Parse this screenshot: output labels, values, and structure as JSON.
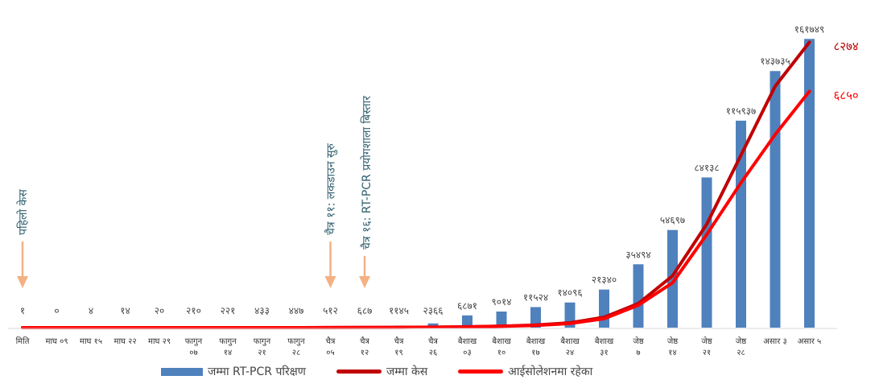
{
  "chart_data": {
    "type": "bar+line",
    "categories": [
      "मिति",
      "माघ ०९",
      "माघ १५",
      "माघ २२",
      "माघ २९",
      "फागुन ०७",
      "फागुन १४",
      "फागुन २१",
      "फागुन २८",
      "चैत्र ०५",
      "चैत्र १२",
      "चैत्र १९",
      "चैत्र २६",
      "बैशाख ०३",
      "बैशाख १०",
      "बैशाख १७",
      "बैशाख २४",
      "बैशाख ३१",
      "जेष्ठ ७",
      "जेष्ठ १४",
      "जेष्ठ २१",
      "जेष्ठ २८",
      "असार ३",
      "असार ५"
    ],
    "series": [
      {
        "name": "जम्मा RT-PCR परिक्षण",
        "type": "bar",
        "color": "#4f81bd",
        "values": [
          1,
          0,
          4,
          14,
          20,
          210,
          221,
          433,
          447,
          512,
          687,
          1145,
          2366,
          6871,
          9014,
          11524,
          14096,
          21340,
          35494,
          54697,
          84138,
          115937,
          143735,
          161749
        ],
        "labels": [
          "१",
          "०",
          "४",
          "१४",
          "२०",
          "२१०",
          "२२१",
          "४३३",
          "४४७",
          "५१२",
          "६८७",
          "११४५",
          "२३६६",
          "६८७१",
          "९०१४",
          "११५२४",
          "१४०९६",
          "२१३४०",
          "३५४९४",
          "५४६९७",
          "८४१३८",
          "११५९३७",
          "१४३७३५",
          "१६१७४९"
        ]
      },
      {
        "name": "जम्मा केस",
        "type": "line",
        "color": "#c00000",
        "values": [
          1,
          1,
          1,
          1,
          1,
          1,
          1,
          1,
          1,
          2,
          5,
          9,
          13,
          25,
          45,
          75,
          140,
          300,
          700,
          1500,
          3000,
          5000,
          7000,
          8274
        ],
        "end_label": "८२७४"
      },
      {
        "name": "आईसोलेशनमा रहेका",
        "type": "line",
        "color": "#ff0000",
        "values": [
          1,
          1,
          1,
          1,
          1,
          1,
          1,
          1,
          1,
          2,
          4,
          8,
          11,
          22,
          40,
          65,
          120,
          260,
          650,
          1300,
          2700,
          4200,
          5600,
          6850
        ],
        "end_label": "६८५०"
      }
    ],
    "annotations": [
      {
        "category_index": 0,
        "text": "पहिलो केस"
      },
      {
        "category_index": 9,
        "text": "चैत्र ११: लकडाउन सुरु"
      },
      {
        "category_index": 10,
        "text": "चैत्र १६: RT-PCR प्रयोगशाला बिस्तार"
      }
    ],
    "axes": {
      "bar_ylim": [
        0,
        170000
      ],
      "line_ylim": [
        0,
        8800
      ],
      "grid": false
    },
    "legend_position": "bottom"
  }
}
